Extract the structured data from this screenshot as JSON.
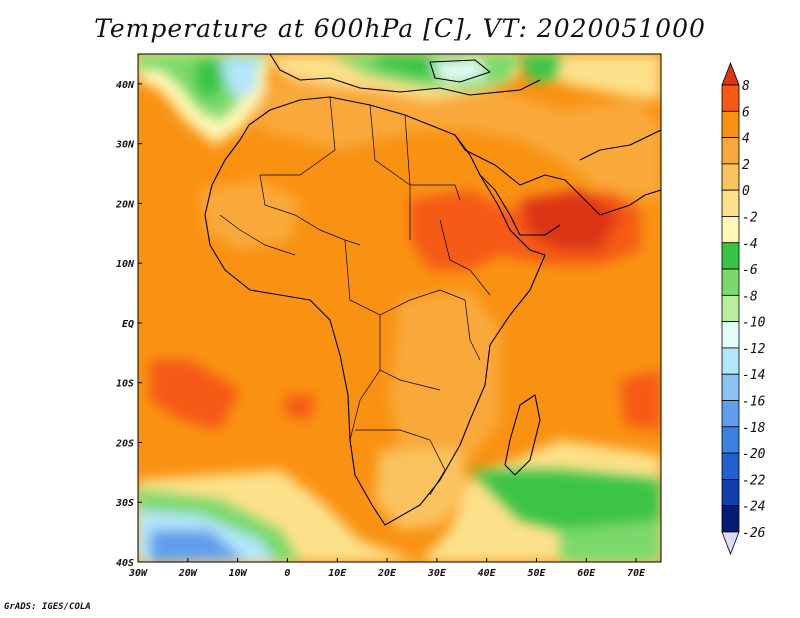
{
  "title": "Temperature at 600hPa [C], VT: 2020051000",
  "credit": "GrADS: IGES/COLA",
  "map": {
    "lon_range": [
      -30,
      75
    ],
    "lat_range": [
      -40,
      45
    ],
    "lon_ticks": [
      {
        "value": -30,
        "label": "30W"
      },
      {
        "value": -20,
        "label": "20W"
      },
      {
        "value": -10,
        "label": "10W"
      },
      {
        "value": 0,
        "label": "0"
      },
      {
        "value": 10,
        "label": "10E"
      },
      {
        "value": 20,
        "label": "20E"
      },
      {
        "value": 30,
        "label": "30E"
      },
      {
        "value": 40,
        "label": "40E"
      },
      {
        "value": 50,
        "label": "50E"
      },
      {
        "value": 60,
        "label": "60E"
      },
      {
        "value": 70,
        "label": "70E"
      }
    ],
    "lat_ticks": [
      {
        "value": 40,
        "label": "40N"
      },
      {
        "value": 30,
        "label": "30N"
      },
      {
        "value": 20,
        "label": "20N"
      },
      {
        "value": 10,
        "label": "10N"
      },
      {
        "value": 0,
        "label": "EQ"
      },
      {
        "value": -10,
        "label": "10S"
      },
      {
        "value": -20,
        "label": "20S"
      },
      {
        "value": -30,
        "label": "30S"
      },
      {
        "value": -40,
        "label": "40S"
      }
    ]
  },
  "colorbar": {
    "labels": [
      "8",
      "6",
      "4",
      "2",
      "0",
      "-2",
      "-4",
      "-6",
      "-8",
      "-10",
      "-12",
      "-14",
      "-16",
      "-18",
      "-20",
      "-22",
      "-24",
      "-26"
    ],
    "colors": [
      "#dc3512",
      "#f55a14",
      "#f99213",
      "#f9a93a",
      "#fac35e",
      "#fde08a",
      "#fef7b6",
      "#3ac444",
      "#7ad96a",
      "#b7ef9b",
      "#e3fdf6",
      "#b3e6fb",
      "#8ac3f5",
      "#5f9eec",
      "#3c80e3",
      "#2060d0",
      "#0f3fac",
      "#061c74",
      "#dcdcfa"
    ]
  }
}
